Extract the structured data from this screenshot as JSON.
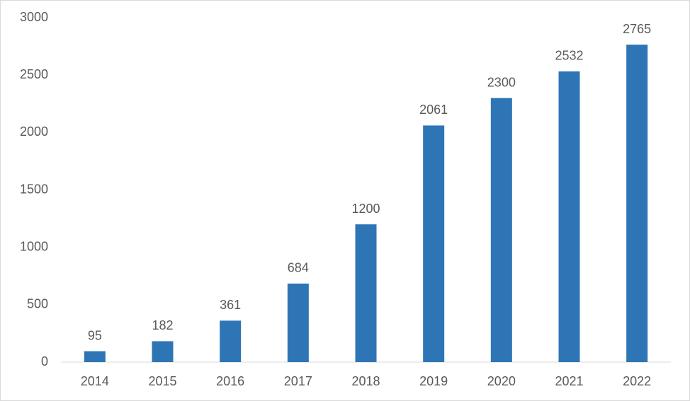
{
  "chart_data": {
    "type": "bar",
    "categories": [
      "2014",
      "2015",
      "2016",
      "2017",
      "2018",
      "2019",
      "2020",
      "2021",
      "2022"
    ],
    "values": [
      95,
      182,
      361,
      684,
      1200,
      2061,
      2300,
      2532,
      2765
    ],
    "color": "#2e75b6",
    "ylim": [
      0,
      3000
    ],
    "yticks": [
      0,
      500,
      1000,
      1500,
      2000,
      2500,
      3000
    ],
    "grid": false
  }
}
